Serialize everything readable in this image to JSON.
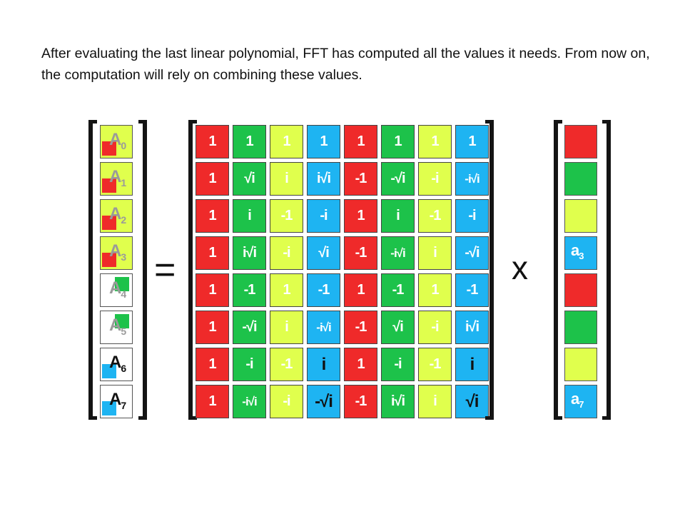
{
  "caption": "After evaluating the last linear polynomial, FFT has computed all the values it needs. From now on, the computation will rely on combining these values.",
  "colors": {
    "red": "#ef2a2a",
    "green": "#1dc24a",
    "yellow": "#e0ff4d",
    "blue": "#1eb4f2",
    "white": "#ffffff"
  },
  "operators": {
    "equals": "=",
    "times": "x"
  },
  "result_vector": [
    {
      "letter": "A",
      "sub": "0",
      "bg": "#e0ff4d",
      "mark": "#ef2a2a",
      "mark_pos": "left",
      "dark": false
    },
    {
      "letter": "A",
      "sub": "1",
      "bg": "#e0ff4d",
      "mark": "#ef2a2a",
      "mark_pos": "left",
      "dark": false
    },
    {
      "letter": "A",
      "sub": "2",
      "bg": "#e0ff4d",
      "mark": "#ef2a2a",
      "mark_pos": "left",
      "dark": false
    },
    {
      "letter": "A",
      "sub": "3",
      "bg": "#e0ff4d",
      "mark": "#ef2a2a",
      "mark_pos": "left",
      "dark": false
    },
    {
      "letter": "A",
      "sub": "4",
      "bg": "#ffffff",
      "mark": "#1dc24a",
      "mark_pos": "right",
      "dark": false
    },
    {
      "letter": "A",
      "sub": "5",
      "bg": "#ffffff",
      "mark": "#1dc24a",
      "mark_pos": "right",
      "dark": false
    },
    {
      "letter": "A",
      "sub": "6",
      "bg": "#ffffff",
      "mark": "#1eb4f2",
      "mark_pos": "left",
      "dark": true
    },
    {
      "letter": "A",
      "sub": "7",
      "bg": "#ffffff",
      "mark": "#1eb4f2",
      "mark_pos": "left",
      "dark": true
    }
  ],
  "matrix": {
    "column_colors": [
      "#ef2a2a",
      "#1dc24a",
      "#e0ff4d",
      "#1eb4f2",
      "#ef2a2a",
      "#1dc24a",
      "#e0ff4d",
      "#1eb4f2"
    ],
    "dark_cells": [
      [
        6,
        3
      ],
      [
        6,
        7
      ],
      [
        7,
        3
      ],
      [
        7,
        7
      ]
    ],
    "rows": [
      [
        "1",
        "1",
        "1",
        "1",
        "1",
        "1",
        "1",
        "1"
      ],
      [
        "1",
        "√i",
        "i",
        "i√i",
        "-1",
        "-√i",
        "-i",
        "-i√i"
      ],
      [
        "1",
        "i",
        "-1",
        "-i",
        "1",
        "i",
        "-1",
        "-i"
      ],
      [
        "1",
        "i√i",
        "-i",
        "√i",
        "-1",
        "-i√i",
        "i",
        "-√i"
      ],
      [
        "1",
        "-1",
        "1",
        "-1",
        "1",
        "-1",
        "1",
        "-1"
      ],
      [
        "1",
        "-√i",
        "i",
        "-i√i",
        "-1",
        "√i",
        "-i",
        "i√i"
      ],
      [
        "1",
        "-i",
        "-1",
        "i",
        "1",
        "-i",
        "-1",
        "i"
      ],
      [
        "1",
        "-i√i",
        "-i",
        "-√i",
        "-1",
        "i√i",
        "i",
        "√i"
      ]
    ]
  },
  "coefficient_vector": [
    {
      "color": "#ef2a2a",
      "label": ""
    },
    {
      "color": "#1dc24a",
      "label": ""
    },
    {
      "color": "#e0ff4d",
      "label": ""
    },
    {
      "color": "#1eb4f2",
      "label_letter": "a",
      "label_sub": "3"
    },
    {
      "color": "#ef2a2a",
      "label": ""
    },
    {
      "color": "#1dc24a",
      "label": ""
    },
    {
      "color": "#e0ff4d",
      "label": ""
    },
    {
      "color": "#1eb4f2",
      "label_letter": "a",
      "label_sub": "7"
    }
  ]
}
